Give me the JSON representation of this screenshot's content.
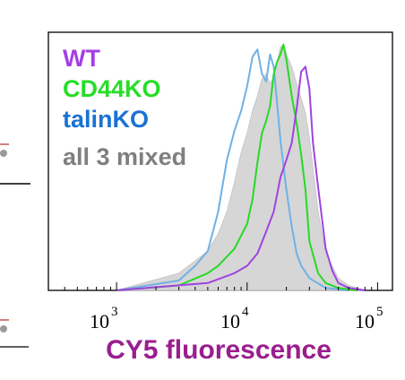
{
  "chart_data": {
    "type": "line",
    "title": "",
    "xlabel": "CY5 fluorescence",
    "ylabel": "",
    "xscale": "log",
    "xlim": [
      300,
      130000
    ],
    "ylim": [
      0,
      1.05
    ],
    "grid": false,
    "legend_position": "top-left",
    "x_ticks": [
      {
        "base": "10",
        "exp": "3",
        "value": 1000
      },
      {
        "base": "10",
        "exp": "4",
        "value": 10000
      },
      {
        "base": "10",
        "exp": "5",
        "value": 100000
      }
    ],
    "series": [
      {
        "name": "all 3 mixed",
        "color": "#c8c8c8",
        "style": "filled",
        "x": [
          1000,
          3000,
          4000,
          5000,
          6000,
          7000,
          8000,
          9000,
          10000,
          11000,
          12000,
          13000,
          14000,
          15000,
          16000,
          17000,
          18000,
          19000,
          20000,
          22000,
          24000,
          26000,
          28000,
          30000,
          35000,
          40000,
          50000,
          60000,
          80000
        ],
        "y": [
          0,
          0.07,
          0.12,
          0.16,
          0.23,
          0.32,
          0.44,
          0.56,
          0.64,
          0.73,
          0.79,
          0.86,
          0.88,
          0.84,
          0.87,
          0.93,
          0.99,
          1.0,
          0.96,
          0.91,
          0.84,
          0.78,
          0.72,
          0.62,
          0.32,
          0.15,
          0.05,
          0.02,
          0
        ]
      },
      {
        "name": "talinKO",
        "color": "#6fb1e6",
        "style": "line",
        "x": [
          1000,
          3000,
          4000,
          5000,
          6000,
          7000,
          8000,
          9000,
          10000,
          11000,
          12000,
          13000,
          14000,
          15000,
          16000,
          17000,
          18000,
          20000,
          22000,
          24000,
          26000,
          30000,
          40000,
          60000
        ],
        "y": [
          0,
          0.04,
          0.1,
          0.16,
          0.32,
          0.53,
          0.65,
          0.73,
          0.83,
          0.95,
          0.98,
          0.88,
          0.85,
          0.96,
          0.91,
          0.76,
          0.61,
          0.41,
          0.26,
          0.15,
          0.1,
          0.05,
          0.01,
          0
        ]
      },
      {
        "name": "CD44KO",
        "color": "#26d926",
        "style": "line",
        "x": [
          1000,
          3000,
          5000,
          6000,
          8000,
          10000,
          11000,
          12000,
          13000,
          14000,
          15000,
          16000,
          17000,
          18000,
          19000,
          20000,
          22000,
          24000,
          26000,
          28000,
          30000,
          35000,
          40000,
          50000,
          70000
        ],
        "y": [
          0,
          0.02,
          0.07,
          0.1,
          0.17,
          0.27,
          0.37,
          0.52,
          0.64,
          0.69,
          0.75,
          0.88,
          0.93,
          0.96,
          1.0,
          0.94,
          0.79,
          0.68,
          0.55,
          0.41,
          0.2,
          0.07,
          0.03,
          0.01,
          0
        ]
      },
      {
        "name": "WT",
        "color": "#a043e0",
        "style": "line",
        "x": [
          1000,
          5000,
          8000,
          10000,
          12000,
          14000,
          16000,
          18000,
          20000,
          22000,
          24000,
          26000,
          28000,
          30000,
          32000,
          35000,
          40000,
          45000,
          50000,
          60000,
          80000
        ],
        "y": [
          0,
          0.03,
          0.07,
          0.1,
          0.15,
          0.24,
          0.32,
          0.46,
          0.53,
          0.6,
          0.74,
          0.89,
          0.91,
          0.82,
          0.6,
          0.42,
          0.17,
          0.08,
          0.03,
          0.01,
          0
        ]
      }
    ],
    "legend": [
      {
        "label": "WT",
        "color": "#a43fe3"
      },
      {
        "label": "CD44KO",
        "color": "#27dd27"
      },
      {
        "label": "talinKO",
        "color": "#1a72d4"
      },
      {
        "label": "all 3 mixed",
        "color": "#7f7f7f"
      }
    ],
    "xlabel_color": "#9a1e8e"
  }
}
